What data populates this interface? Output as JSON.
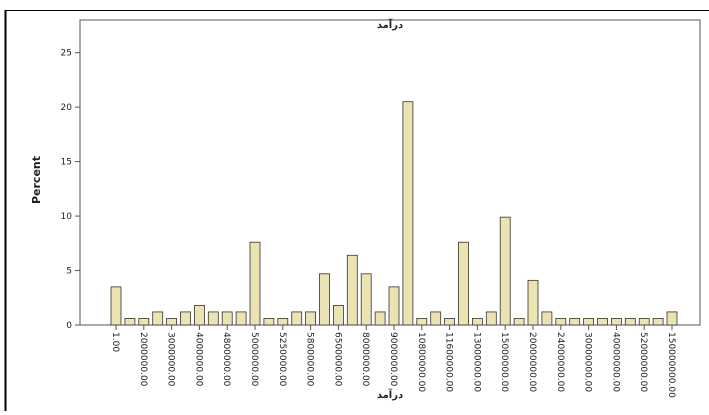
{
  "chart_data": {
    "type": "bar",
    "title": "درآمد",
    "x_label": "درآمد",
    "y_label": "Percent",
    "categories": [
      "1.00",
      null,
      "2000000.00",
      null,
      "3000000.00",
      null,
      "4000000.00",
      null,
      "4800000.00",
      null,
      "5000000.00",
      null,
      "5250000.00",
      null,
      "5800000.00",
      null,
      "6500000.00",
      null,
      "8000000.00",
      null,
      "9000000.00",
      null,
      "10800000.00",
      null,
      "11600000.00",
      null,
      "13000000.00",
      null,
      "15000000.00",
      null,
      "20000000.00",
      null,
      "24000000.00",
      null,
      "30000000.00",
      null,
      "40000000.00",
      null,
      "52000000.00",
      null,
      "150000000.00"
    ],
    "values": [
      3.5,
      0.6,
      0.6,
      1.2,
      0.6,
      1.2,
      1.8,
      1.2,
      1.2,
      1.2,
      7.6,
      0.6,
      0.6,
      1.2,
      1.2,
      4.7,
      1.8,
      6.4,
      4.7,
      1.2,
      3.5,
      20.5,
      0.6,
      1.2,
      0.6,
      7.6,
      0.6,
      1.2,
      9.9,
      0.6,
      4.1,
      1.2,
      0.6,
      0.6,
      0.6,
      0.6,
      0.6,
      0.6,
      0.6,
      0.6,
      1.2
    ],
    "color": "#ece3b2",
    "ylim": [
      0,
      28
    ],
    "yticks": [
      0,
      5,
      10,
      15,
      20,
      25
    ],
    "grid": false
  }
}
